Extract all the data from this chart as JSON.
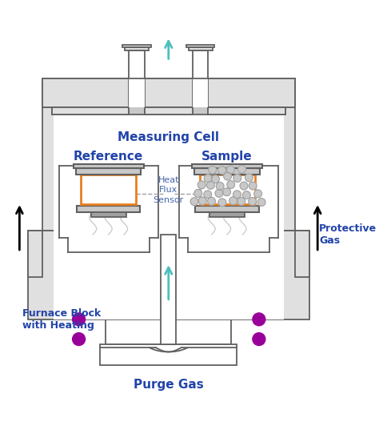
{
  "bg_color": "#ffffff",
  "blue_color": "#2244AA",
  "cyan_color": "#4DBFBF",
  "dark_gray": "#606060",
  "mid_gray": "#A0A0A0",
  "light_gray": "#C8C8C8",
  "lighter_gray": "#E0E0E0",
  "orange_color": "#E88020",
  "purple_color": "#990099",
  "line_color": "#606060",
  "labels": {
    "measuring_cell": "Measuring Cell",
    "reference": "Reference",
    "sample": "Sample",
    "heat_flux": "Heat\nFlux\nSensor",
    "furnace_block": "Furnace Block\nwith Heating",
    "purge_gas": "Purge Gas",
    "protective_gas": "Protective\nGas"
  }
}
